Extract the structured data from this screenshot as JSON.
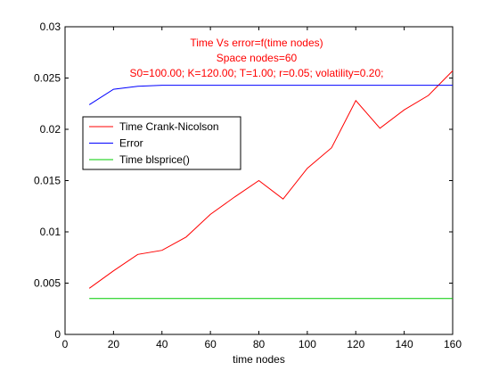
{
  "chart_data": {
    "type": "line",
    "title_lines": [
      "Time Vs error=f(time nodes)",
      "Space nodes=60",
      "S0=100.00; K=120.00; T=1.00; r=0.05; volatility=0.20;"
    ],
    "xlabel": "time nodes",
    "ylabel": "",
    "xlim": [
      0,
      160
    ],
    "ylim": [
      0,
      0.03
    ],
    "x_ticks": [
      0,
      20,
      40,
      60,
      80,
      100,
      120,
      140,
      160
    ],
    "x_tick_labels": [
      "0",
      "20",
      "40",
      "60",
      "80",
      "100",
      "120",
      "140",
      "160"
    ],
    "y_ticks": [
      0,
      0.005,
      0.01,
      0.015,
      0.02,
      0.025,
      0.03
    ],
    "y_tick_labels": [
      "0",
      "0.005",
      "0.01",
      "0.015",
      "0.02",
      "0.025",
      "0.03"
    ],
    "grid": false,
    "legend_position": "center-left",
    "x": [
      10,
      20,
      30,
      40,
      50,
      60,
      70,
      80,
      90,
      100,
      110,
      120,
      130,
      140,
      150,
      160
    ],
    "series": [
      {
        "name": "Time Crank-Nicolson",
        "color": "#ff0000",
        "values": [
          0.0045,
          0.0062,
          0.0078,
          0.0082,
          0.0095,
          0.0117,
          0.0134,
          0.015,
          0.0132,
          0.0162,
          0.0182,
          0.0228,
          0.0201,
          0.0219,
          0.0233,
          0.0257
        ]
      },
      {
        "name": "Error",
        "color": "#0000ff",
        "values": [
          0.0224,
          0.0239,
          0.0242,
          0.0243,
          0.0243,
          0.0243,
          0.0243,
          0.0243,
          0.0243,
          0.0243,
          0.0243,
          0.0243,
          0.0243,
          0.0243,
          0.0243,
          0.0243
        ]
      },
      {
        "name": "Time blsprice()",
        "color": "#00cc00",
        "values": [
          0.0035,
          0.0035,
          0.0035,
          0.0035,
          0.0035,
          0.0035,
          0.0035,
          0.0035,
          0.0035,
          0.0035,
          0.0035,
          0.0035,
          0.0035,
          0.0035,
          0.0035,
          0.0035
        ]
      }
    ],
    "title_color": "#ff0000"
  }
}
